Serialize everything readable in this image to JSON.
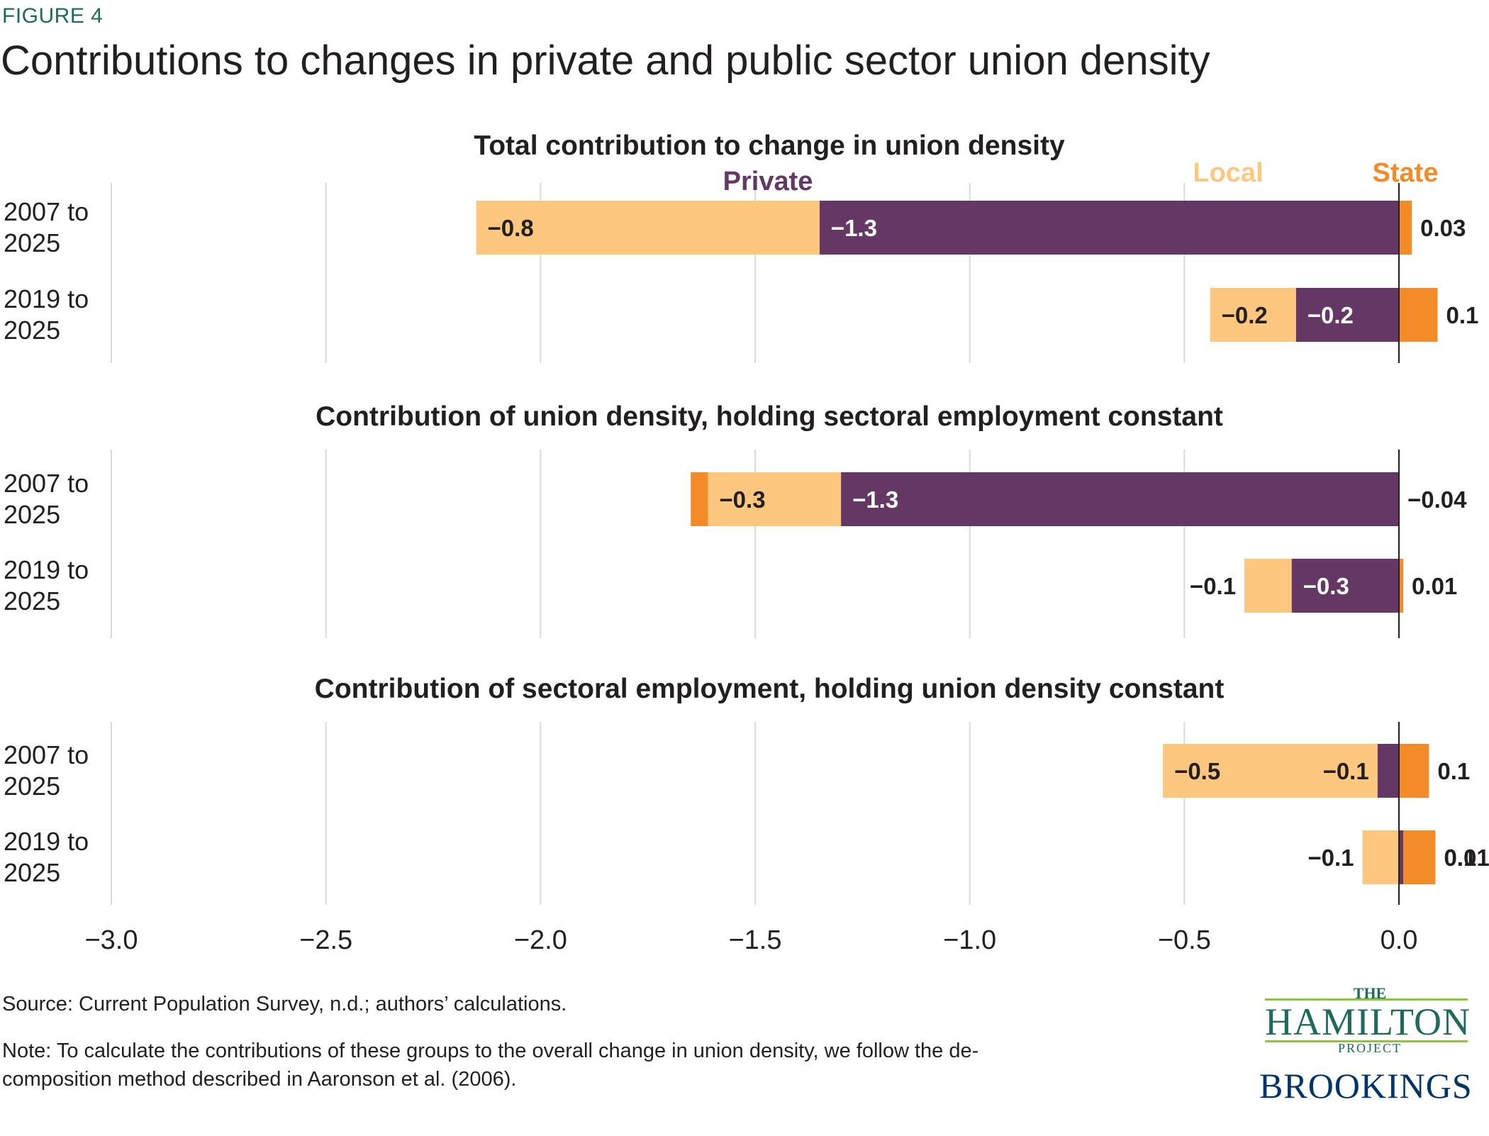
{
  "figure_label": "FIGURE 4",
  "title": "Contributions to changes in private and public sector union density",
  "colors": {
    "private": "#643764",
    "local": "#fdc77f",
    "state": "#f48b29",
    "gridline": "#d9d9d9",
    "zero_line": "#231f20",
    "label_dark": "#231f20",
    "label_light": "#ffffff"
  },
  "legend": [
    {
      "key": "private",
      "label": "Private"
    },
    {
      "key": "local",
      "label": "Local"
    },
    {
      "key": "state",
      "label": "State"
    }
  ],
  "chart_data": {
    "type": "bar",
    "orientation": "horizontal",
    "stacked": true,
    "xlim": [
      -3.0,
      0.0
    ],
    "xticks": [
      -3.0,
      -2.5,
      -2.0,
      -1.5,
      -1.0,
      -0.5,
      0.0
    ],
    "xtick_labels": [
      "−3.0",
      "−2.5",
      "−2.0",
      "−1.5",
      "−1.0",
      "−0.5",
      "0.0"
    ],
    "grid": true,
    "legend_placement": "top, above first panel",
    "panels": [
      {
        "title": "Total contribution to change in union density",
        "rows": [
          {
            "label": "2007 to 2025",
            "values": {
              "private": -1.35,
              "local": -0.8,
              "state": 0.03
            },
            "labels": {
              "private": "−1.3",
              "local": "−0.8",
              "state": "0.03"
            }
          },
          {
            "label": "2019 to 2025",
            "values": {
              "private": -0.24,
              "local": -0.2,
              "state": 0.09
            },
            "labels": {
              "private": "−0.2",
              "local": "−0.2",
              "state": "0.1"
            }
          }
        ]
      },
      {
        "title": "Contribution of union density, holding sectoral employment constant",
        "rows": [
          {
            "label": "2007 to 2025",
            "values": {
              "private": -1.3,
              "local": -0.31,
              "state": -0.04
            },
            "labels": {
              "private": "−1.3",
              "local": "−0.3",
              "state": "−0.04"
            }
          },
          {
            "label": "2019 to 2025",
            "values": {
              "private": -0.25,
              "local": -0.11,
              "state": 0.01
            },
            "labels": {
              "private": "−0.3",
              "local": "−0.1",
              "state": "0.01"
            }
          }
        ]
      },
      {
        "title": "Contribution of sectoral employment, holding union density constant",
        "rows": [
          {
            "label": "2007 to 2025",
            "values": {
              "private": -0.05,
              "local": -0.5,
              "state": 0.07
            },
            "labels": {
              "private": "−0.1",
              "local": "−0.5",
              "state": "0.1"
            }
          },
          {
            "label": "2019 to 2025",
            "values": {
              "private": 0.01,
              "local": -0.085,
              "state": 0.075
            },
            "labels": {
              "private": "0.01",
              "local": "−0.1",
              "state": "0.1"
            }
          }
        ]
      }
    ]
  },
  "source": "Source: Current Population Survey, n.d.; authors’ calculations.",
  "note_line1": "Note: To calculate the contributions of these groups to the overall change in union density, we follow the de-",
  "note_line2": "composition method described in Aaronson et al. (2006).",
  "logo": {
    "the": "THE",
    "hamilton": "HAMILTON",
    "project": "PROJECT",
    "brookings": "BROOKINGS"
  }
}
